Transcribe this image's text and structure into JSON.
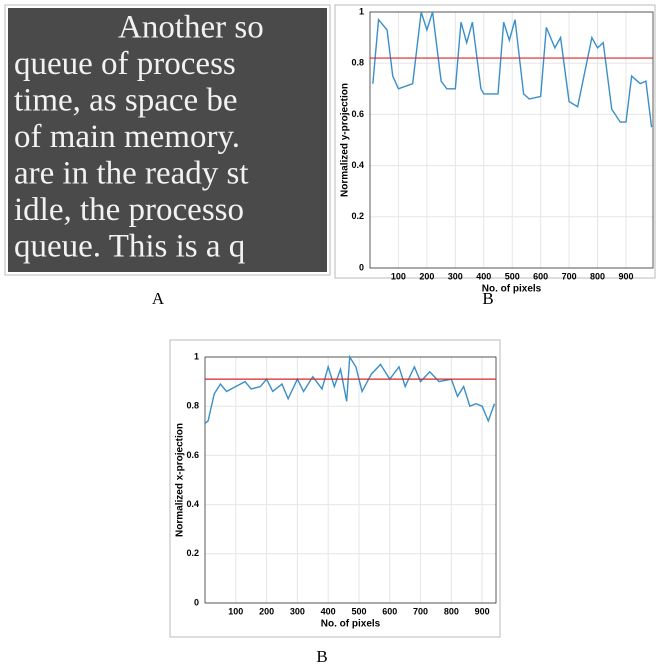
{
  "panel_a": {
    "lines": [
      "Another so",
      "queue of process",
      "time, as space be",
      "of main memory.",
      "are in the ready st",
      "idle, the processo",
      "queue. This is a q"
    ],
    "caption": "A"
  },
  "chart_data": [
    {
      "type": "line",
      "caption": "B",
      "xlabel": "No. of pixels",
      "ylabel": "Normalized y-projection",
      "x": [
        10,
        30,
        60,
        80,
        100,
        150,
        180,
        200,
        220,
        250,
        270,
        300,
        320,
        340,
        360,
        390,
        400,
        450,
        470,
        490,
        510,
        540,
        560,
        600,
        620,
        650,
        670,
        700,
        730,
        780,
        800,
        820,
        850,
        880,
        900,
        920,
        950,
        970,
        990
      ],
      "values": [
        0.72,
        0.97,
        0.93,
        0.75,
        0.7,
        0.72,
        1.0,
        0.93,
        1.0,
        0.73,
        0.7,
        0.7,
        0.96,
        0.88,
        0.96,
        0.7,
        0.68,
        0.68,
        0.96,
        0.89,
        0.97,
        0.68,
        0.66,
        0.67,
        0.94,
        0.86,
        0.9,
        0.65,
        0.63,
        0.9,
        0.86,
        0.88,
        0.62,
        0.57,
        0.57,
        0.75,
        0.72,
        0.73,
        0.55
      ],
      "color": "#3a8fc8",
      "threshold": 0.82,
      "threshold_color": "#d62728",
      "xlim": [
        0,
        995
      ],
      "xticks": [
        100,
        200,
        300,
        400,
        500,
        600,
        700,
        800,
        900
      ],
      "ylim": [
        0,
        1
      ],
      "yticks": [
        0,
        0.2,
        0.4,
        0.6,
        0.8,
        1
      ],
      "grid": true
    },
    {
      "type": "line",
      "caption": "B",
      "xlabel": "No. of pixels",
      "ylabel": "Normalized x-projection",
      "x": [
        0,
        10,
        30,
        50,
        70,
        100,
        130,
        150,
        180,
        200,
        220,
        250,
        270,
        300,
        320,
        350,
        380,
        400,
        420,
        440,
        460,
        470,
        490,
        510,
        540,
        570,
        600,
        630,
        650,
        680,
        700,
        730,
        760,
        800,
        820,
        840,
        860,
        880,
        900,
        920,
        940
      ],
      "values": [
        0.73,
        0.74,
        0.85,
        0.89,
        0.86,
        0.88,
        0.9,
        0.87,
        0.88,
        0.91,
        0.86,
        0.89,
        0.83,
        0.91,
        0.86,
        0.92,
        0.87,
        0.96,
        0.88,
        0.95,
        0.82,
        1.0,
        0.96,
        0.86,
        0.93,
        0.97,
        0.91,
        0.96,
        0.88,
        0.96,
        0.9,
        0.94,
        0.9,
        0.91,
        0.84,
        0.88,
        0.8,
        0.81,
        0.8,
        0.74,
        0.81
      ],
      "color": "#3a8fc8",
      "threshold": 0.91,
      "threshold_color": "#d62728",
      "xlim": [
        0,
        945
      ],
      "xticks": [
        100,
        200,
        300,
        400,
        500,
        600,
        700,
        800,
        900
      ],
      "ylim": [
        0,
        1
      ],
      "yticks": [
        0,
        0.2,
        0.4,
        0.6,
        0.8,
        1
      ],
      "grid": true
    }
  ]
}
